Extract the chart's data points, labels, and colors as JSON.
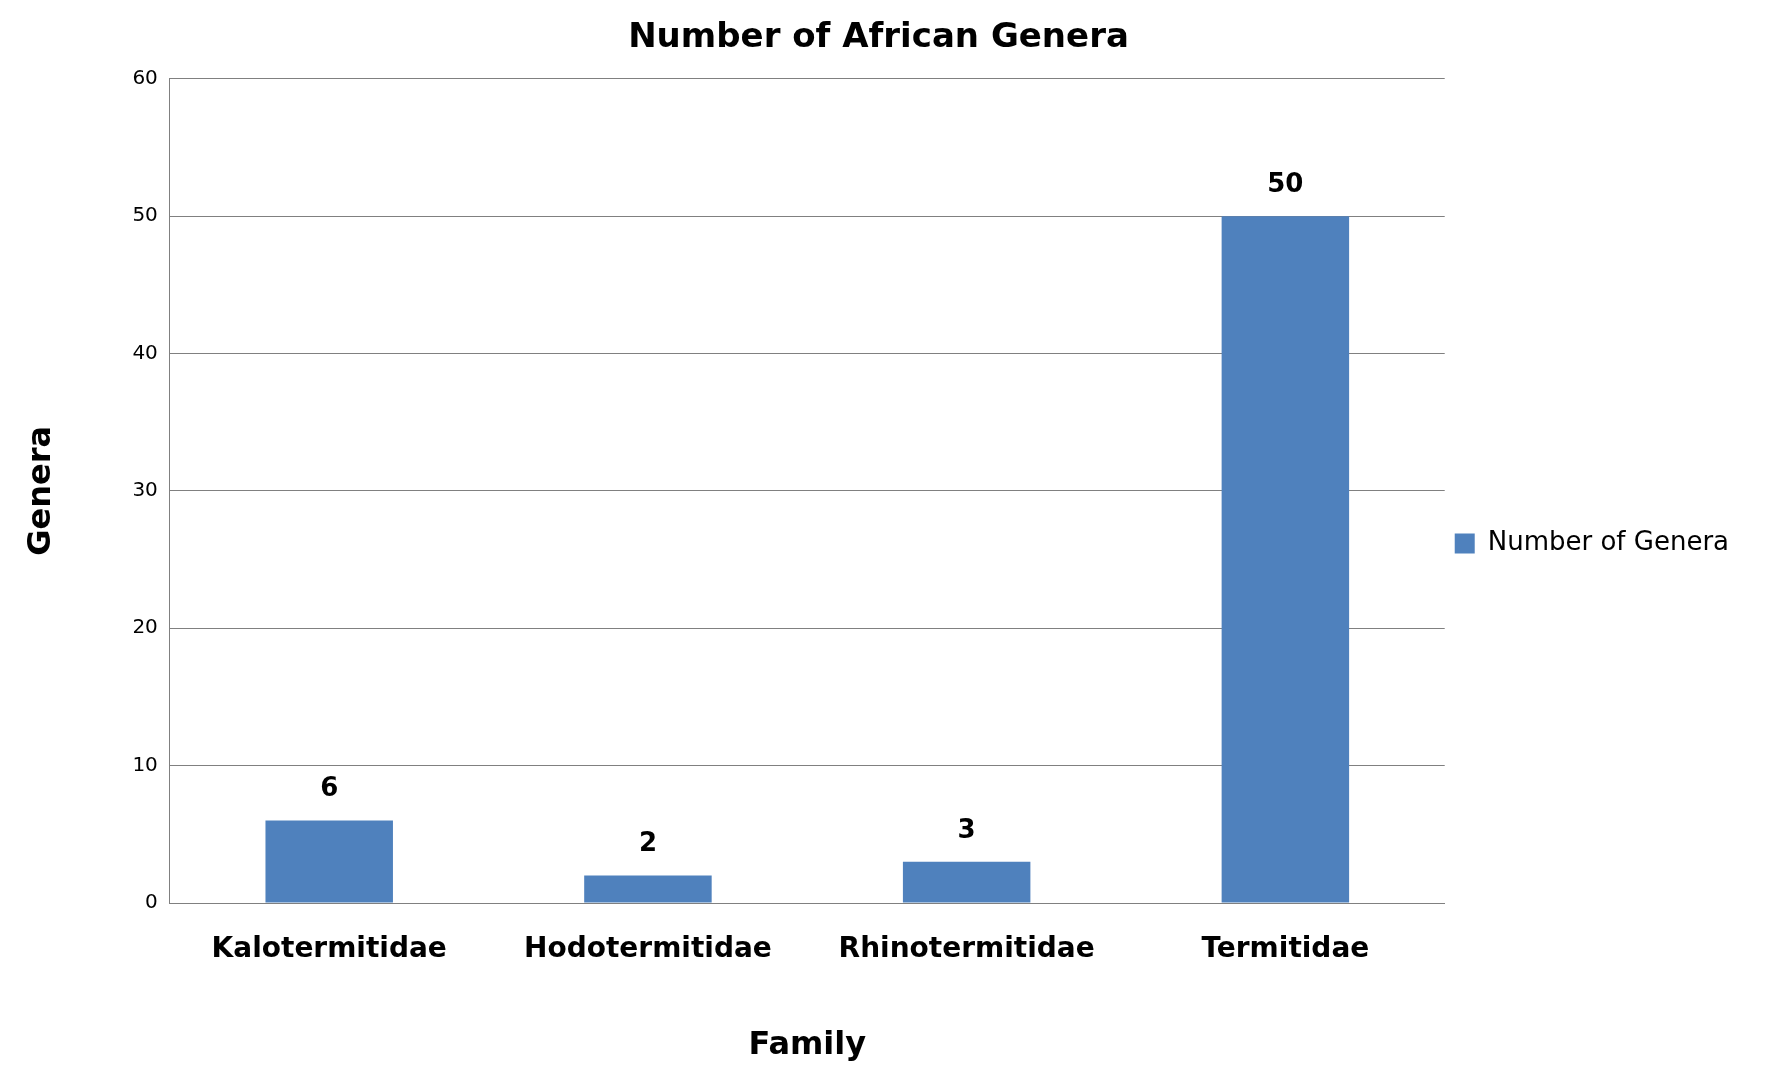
{
  "chart_data": {
    "type": "bar",
    "title": "Number of African Genera",
    "xlabel": "Family",
    "ylabel": "Genera",
    "categories": [
      "Kalotermitidae",
      "Hodotermitidae",
      "Rhinotermitidae",
      "Termitidae"
    ],
    "series": [
      {
        "name": "Number of Genera",
        "color": "#4f81bd",
        "values": [
          6,
          2,
          3,
          50
        ]
      }
    ],
    "ylim": [
      0,
      60
    ],
    "yticks": [
      0,
      10,
      20,
      30,
      40,
      50,
      60
    ],
    "grid": "y",
    "legend": "right",
    "data_labels": true
  }
}
